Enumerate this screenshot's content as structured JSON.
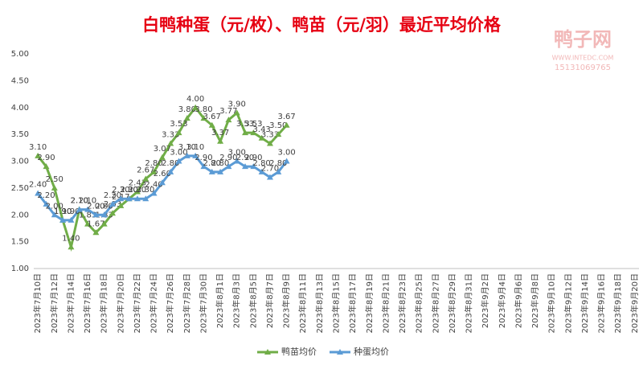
{
  "chart_data": {
    "type": "line",
    "title": "白鸭种蛋（元/枚）、鸭苗（元/羽）最近平均价格",
    "watermark": {
      "name": "鸭子网",
      "site": "WWW.INTEDC.COM",
      "phone": "15131069765"
    },
    "categories": [
      "2023年7月10日",
      null,
      "2023年7月12日",
      null,
      "2023年7月14日",
      null,
      "2023年7月16日",
      null,
      "2023年7月18日",
      null,
      "2023年7月20日",
      null,
      "2023年7月22日",
      null,
      "2023年7月24日",
      null,
      "2023年7月26日",
      null,
      "2023年7月28日",
      null,
      "2023年7月30日",
      null,
      "2023年8月1日",
      null,
      "2023年8月3日",
      null,
      "2023年8月5日",
      null,
      "2023年8月7日",
      null,
      "2023年8月9日",
      null,
      "2023年8月11日",
      null,
      "2023年8月13日",
      null,
      "2023年8月15日",
      null,
      "2023年8月17日",
      null,
      "2023年8月19日",
      null,
      "2023年8月21日",
      null,
      "2023年8月23日",
      null,
      "2023年8月25日",
      null,
      "2023年8月27日",
      null,
      "2023年8月29日",
      null,
      "2023年8月31日",
      null,
      "2023年9月2日",
      null,
      "2023年9月4日",
      null,
      "2023年9月6日",
      null,
      "2023年9月8日",
      null,
      "2023年9月10日",
      null,
      "2023年9月12日",
      null,
      "2023年9月14日",
      null,
      "2023年9月16日",
      null,
      "2023年9月18日",
      null,
      "2023年9月20日"
    ],
    "series": [
      {
        "name": "鸭苗均价",
        "color": "#70ad47",
        "values": [
          3.1,
          2.9,
          2.5,
          1.9,
          1.4,
          2.1,
          1.83,
          1.67,
          1.83,
          2.03,
          2.17,
          2.3,
          2.43,
          2.67,
          2.8,
          3.07,
          3.33,
          3.53,
          3.8,
          4.0,
          3.8,
          3.67,
          3.37,
          3.77,
          3.9,
          3.53,
          3.53,
          3.43,
          3.33,
          3.5,
          3.67,
          null,
          null,
          null,
          null,
          null,
          null,
          null,
          null,
          null,
          null,
          null,
          null,
          null,
          null,
          null,
          null,
          null,
          null,
          null,
          null,
          null,
          null,
          null,
          null,
          null,
          null,
          null,
          null,
          null,
          null,
          null,
          null,
          null,
          null,
          null,
          null,
          null,
          null,
          null,
          null,
          null,
          null
        ],
        "value_labels": [
          "3.10",
          "2.90",
          "2.50",
          "1.90",
          "1.40",
          "2.10",
          "1.83",
          "1.67",
          "1.83",
          "2.03",
          "2.17",
          "2.30",
          "2.43",
          "2.67",
          "2.80",
          "3.07",
          "3.33",
          "3.53",
          "3.80",
          "4.00",
          "3.80",
          "3.67",
          "3.37",
          "3.77",
          "3.90",
          "3.53",
          "3.53",
          "3.43",
          "3.33",
          "3.50",
          "3.67",
          null,
          null,
          null,
          null,
          null,
          null,
          null,
          null,
          null,
          null,
          null,
          null,
          null,
          null,
          null,
          null,
          null,
          null,
          null,
          null,
          null,
          null,
          null,
          null,
          null,
          null,
          null,
          null,
          null,
          null,
          null,
          null,
          null,
          null,
          null,
          null,
          null,
          null,
          null,
          null,
          null,
          null
        ]
      },
      {
        "name": "种蛋均价",
        "color": "#5b9bd5",
        "values": [
          2.4,
          2.2,
          2.0,
          1.9,
          1.9,
          2.1,
          2.1,
          2.0,
          2.0,
          2.2,
          2.3,
          2.3,
          2.3,
          2.3,
          2.4,
          2.6,
          2.8,
          3.0,
          3.1,
          3.1,
          2.9,
          2.8,
          2.8,
          2.9,
          3.0,
          2.9,
          2.9,
          2.8,
          2.7,
          2.8,
          3.0,
          null,
          null,
          null,
          null,
          null,
          null,
          null,
          null,
          null,
          null,
          null,
          null,
          null,
          null,
          null,
          null,
          null,
          null,
          null,
          null,
          null,
          null,
          null,
          null,
          null,
          null,
          null,
          null,
          null,
          null,
          null,
          null,
          null,
          null,
          null,
          null,
          null,
          null,
          null,
          null,
          null,
          null
        ],
        "value_labels": [
          "2.40",
          "2.20",
          "2.00",
          "1.90",
          "1.90",
          "2.10",
          "2.10",
          "2.00",
          "2.00",
          "2.20",
          "2.30",
          "2.30",
          "2.30",
          "2.30",
          "2.40",
          "2.60",
          "2.80",
          "3.00",
          "3.10",
          "3.10",
          "2.90",
          "2.80",
          "2.80",
          "2.90",
          "3.00",
          "2.90",
          "2.90",
          "2.80",
          "2.70",
          "2.80",
          "3.00",
          null,
          null,
          null,
          null,
          null,
          null,
          null,
          null,
          null,
          null,
          null,
          null,
          null,
          null,
          null,
          null,
          null,
          null,
          null,
          null,
          null,
          null,
          null,
          null,
          null,
          null,
          null,
          null,
          null,
          null,
          null,
          null,
          null,
          null,
          null,
          null,
          null,
          null,
          null,
          null,
          null,
          null
        ]
      }
    ],
    "ylim": [
      1,
      5
    ],
    "yticks": [
      {
        "value": 1,
        "label": "1.00"
      },
      {
        "value": 1.5,
        "label": "1.50"
      },
      {
        "value": 2,
        "label": "2.00"
      },
      {
        "value": 2.5,
        "label": "2.50"
      },
      {
        "value": 3,
        "label": "3.00"
      },
      {
        "value": 3.5,
        "label": "3.50"
      },
      {
        "value": 4,
        "label": "4.00"
      },
      {
        "value": 4.5,
        "label": "4.50"
      },
      {
        "value": 5,
        "label": "5.00"
      }
    ],
    "grid": false,
    "legend": "bottom"
  }
}
